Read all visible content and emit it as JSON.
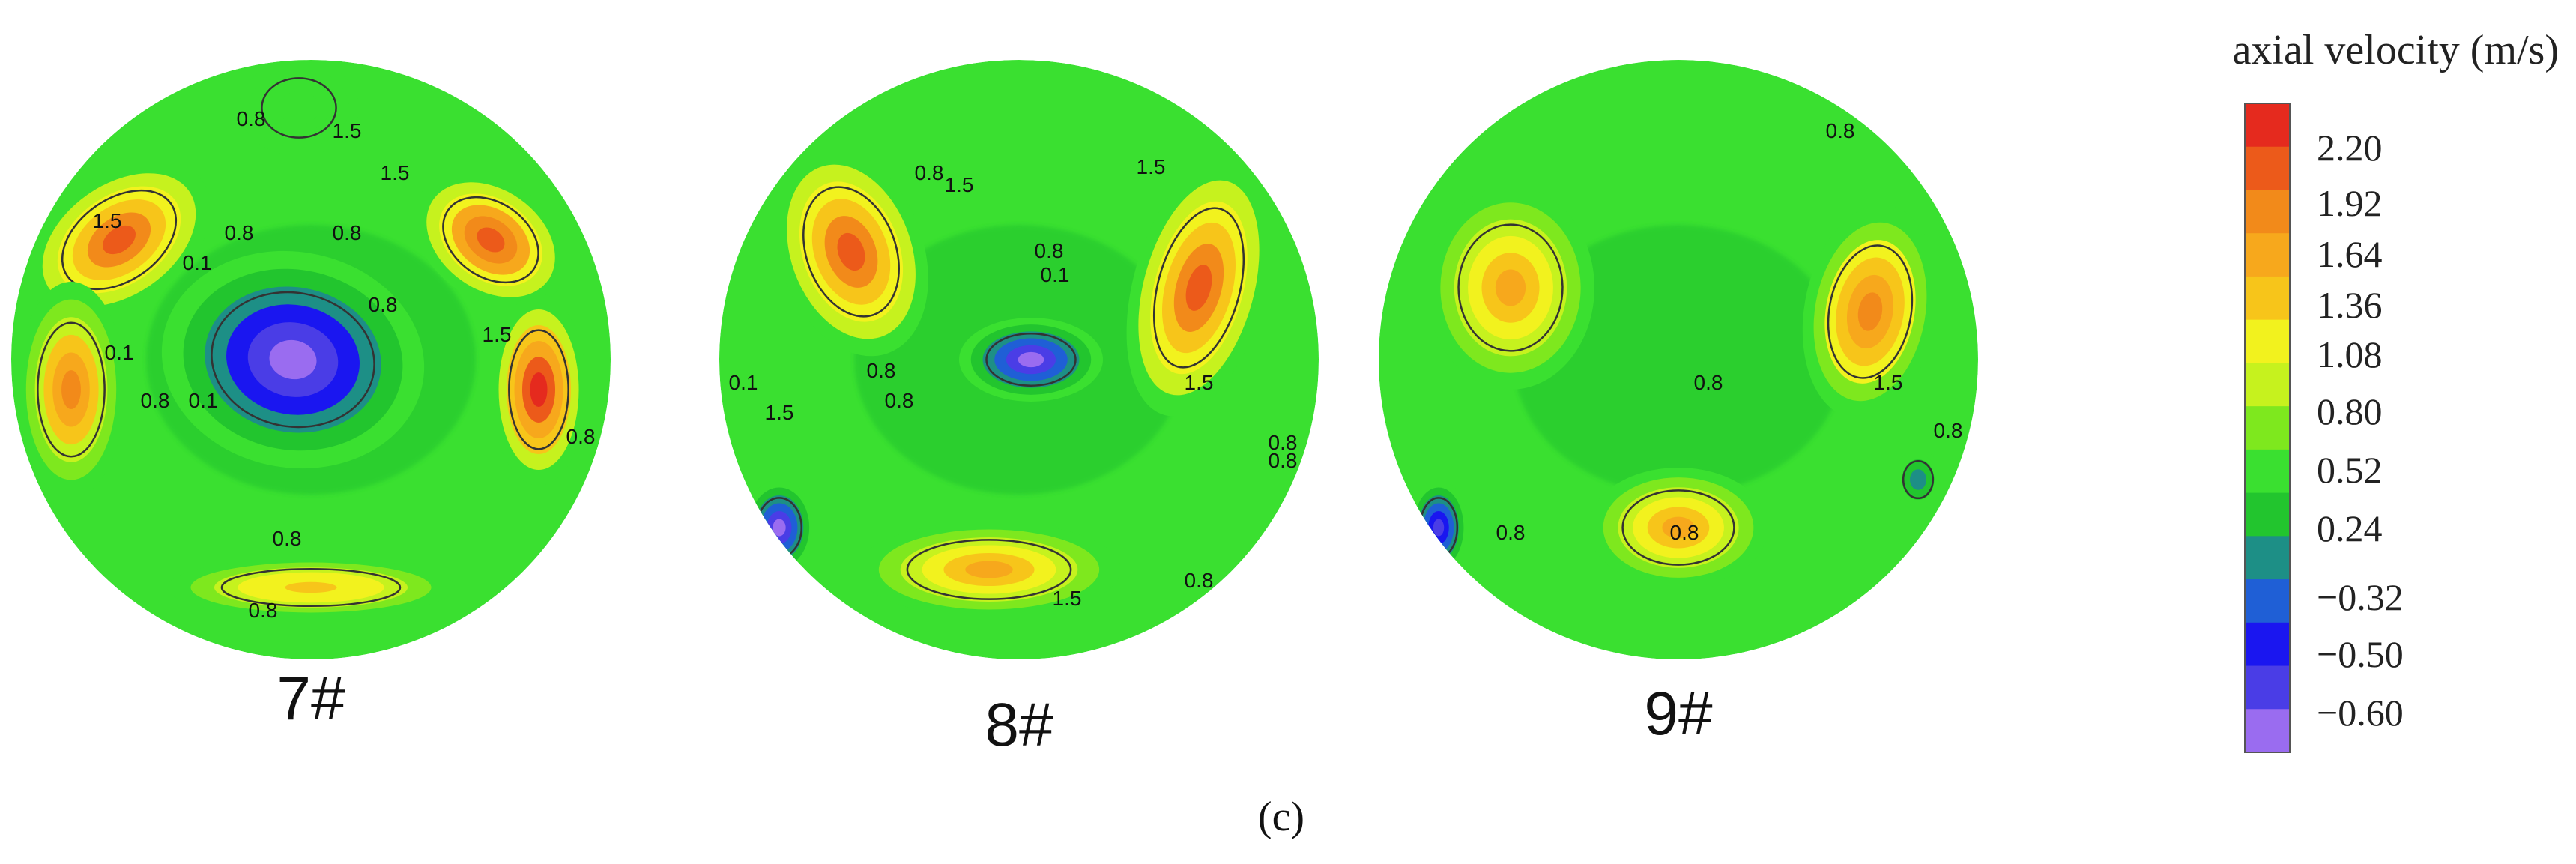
{
  "figure": {
    "panel_label": "(c)"
  },
  "chart_data": {
    "type": "heatmap",
    "legend": {
      "title": "axial velocity (m/s)",
      "placement": "right",
      "colors": [
        "#9a6cf0",
        "#4a3de6",
        "#1a16f0",
        "#1f5fd6",
        "#1d8f86",
        "#22c52e",
        "#3ae030",
        "#7ee81e",
        "#c6f21e",
        "#f2f21e",
        "#f7c51a",
        "#f7a81c",
        "#f28a1a",
        "#ec5a1a",
        "#e52a1e"
      ],
      "tick_labels": [
        "2.20",
        "1.92",
        "1.64",
        "1.36",
        "1.08",
        "0.80",
        "0.52",
        "0.24",
        "−0.32",
        "−0.50",
        "−0.60"
      ]
    },
    "plots": [
      {
        "name": "7#",
        "contour_labels": [
          "1.5",
          "1.5",
          "0.8",
          "0.8",
          "1.5",
          "1.5",
          "0.8",
          "0.8",
          "0.1",
          "0.1",
          "0.1",
          "1.5",
          "0.8",
          "0.8",
          "0.8",
          "0.8"
        ],
        "hotspots": [
          {
            "u": 0.18,
            "v": 0.3,
            "value": 1.9,
            "rx": 0.17,
            "ry": 0.11,
            "rot": -35
          },
          {
            "u": 0.1,
            "v": 0.55,
            "value": 1.7,
            "rx": 0.09,
            "ry": 0.18,
            "rot": 0
          },
          {
            "u": 0.8,
            "v": 0.3,
            "value": 2.0,
            "rx": 0.14,
            "ry": 0.1,
            "rot": 35
          },
          {
            "u": 0.88,
            "v": 0.55,
            "value": 2.2,
            "rx": 0.08,
            "ry": 0.16,
            "rot": 0
          },
          {
            "u": 0.47,
            "v": 0.5,
            "value": -0.6,
            "rx": 0.22,
            "ry": 0.18,
            "rot": 10
          },
          {
            "u": 0.5,
            "v": 0.88,
            "value": 1.4,
            "rx": 0.24,
            "ry": 0.05,
            "rot": 0
          },
          {
            "u": 0.48,
            "v": 0.08,
            "value": 0.65,
            "rx": 0.1,
            "ry": 0.08,
            "rot": 0
          }
        ]
      },
      {
        "name": "8#",
        "contour_labels": [
          "0.8",
          "1.5",
          "0.8",
          "1.5",
          "0.8",
          "0.8",
          "0.1",
          "0.1",
          "1.5",
          "1.5",
          "0.8",
          "0.8",
          "1.5",
          "0.8",
          "0.8"
        ],
        "hotspots": [
          {
            "u": 0.22,
            "v": 0.32,
            "value": 1.9,
            "rx": 0.12,
            "ry": 0.18,
            "rot": -20
          },
          {
            "u": 0.8,
            "v": 0.38,
            "value": 1.92,
            "rx": 0.11,
            "ry": 0.22,
            "rot": 15
          },
          {
            "u": 0.45,
            "v": 0.85,
            "value": 1.6,
            "rx": 0.22,
            "ry": 0.08,
            "rot": 0
          },
          {
            "u": 0.52,
            "v": 0.5,
            "value": -0.45,
            "rx": 0.12,
            "ry": 0.07,
            "rot": 0
          },
          {
            "u": 0.1,
            "v": 0.78,
            "value": -0.45,
            "rx": 0.06,
            "ry": 0.08,
            "rot": 0
          }
        ]
      },
      {
        "name": "9#",
        "contour_labels": [
          "0.8",
          "0.8",
          "0.8",
          "1.5",
          "0.8",
          "0.8",
          "0.8"
        ],
        "hotspots": [
          {
            "u": 0.22,
            "v": 0.38,
            "value": 1.6,
            "rx": 0.14,
            "ry": 0.17,
            "rot": 0
          },
          {
            "u": 0.82,
            "v": 0.42,
            "value": 1.8,
            "rx": 0.11,
            "ry": 0.18,
            "rot": 10
          },
          {
            "u": 0.5,
            "v": 0.78,
            "value": 1.5,
            "rx": 0.15,
            "ry": 0.1,
            "rot": 0
          },
          {
            "u": 0.1,
            "v": 0.78,
            "value": -0.35,
            "rx": 0.05,
            "ry": 0.08,
            "rot": 0
          },
          {
            "u": 0.9,
            "v": 0.7,
            "value": 0.2,
            "rx": 0.04,
            "ry": 0.05,
            "rot": 0
          }
        ]
      }
    ]
  }
}
